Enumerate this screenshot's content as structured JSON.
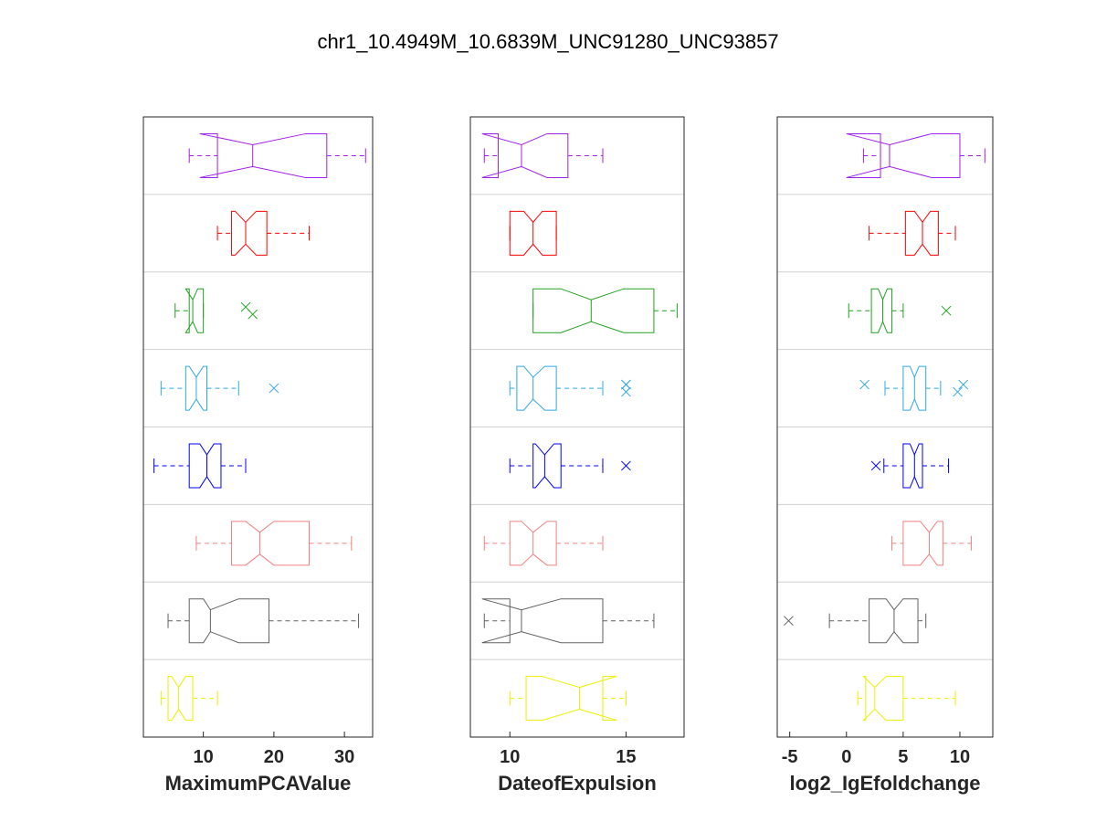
{
  "figure_title": "chr1_10.4949M_10.6839M_UNC91280_UNC93857",
  "chart_data": [
    {
      "type": "boxplot",
      "orientation": "horizontal",
      "notched": true,
      "xlabel": "MaximumPCAValue",
      "xlim": [
        1.5,
        34
      ],
      "xticks": [
        10,
        20,
        30
      ],
      "groups": [
        {
          "color": "#a020f0",
          "whisker_low": 8,
          "q1": 12,
          "median": 17,
          "q3": 27.5,
          "whisker_high": 33,
          "notch_low": 9.5,
          "notch_high": 24.5,
          "outliers": []
        },
        {
          "color": "#ff0000",
          "whisker_low": 12,
          "q1": 14,
          "median": 16,
          "q3": 19,
          "whisker_high": 25,
          "notch_low": 14.5,
          "notch_high": 17.5,
          "outliers": []
        },
        {
          "color": "#20a020",
          "whisker_low": 6,
          "q1": 8,
          "median": 8.5,
          "q3": 10,
          "whisker_high": 10,
          "notch_low": 7.5,
          "notch_high": 9.2,
          "outliers": [
            16,
            17
          ]
        },
        {
          "color": "#30a8e0",
          "whisker_low": 4,
          "q1": 7.5,
          "median": 9,
          "q3": 10.5,
          "whisker_high": 15,
          "notch_low": 8,
          "notch_high": 10,
          "outliers": [
            20
          ]
        },
        {
          "color": "#0000ff",
          "whisker_low": 3,
          "q1": 8,
          "median": 10.5,
          "q3": 12.5,
          "whisker_high": 16,
          "notch_low": 9.5,
          "notch_high": 11.5,
          "outliers": []
        },
        {
          "color": "#f08080",
          "whisker_low": 9,
          "q1": 14,
          "median": 18,
          "q3": 25,
          "whisker_high": 31,
          "notch_low": 16,
          "notch_high": 20,
          "outliers": []
        },
        {
          "color": "#606060",
          "whisker_low": 5,
          "q1": 8,
          "median": 11,
          "q3": 19.3,
          "whisker_high": 32,
          "notch_low": 10,
          "notch_high": 15,
          "outliers": []
        },
        {
          "color": "#eeee00",
          "whisker_low": 4,
          "q1": 5,
          "median": 6.5,
          "q3": 8.5,
          "whisker_high": 12,
          "notch_low": 5.5,
          "notch_high": 7.5,
          "outliers": []
        }
      ]
    },
    {
      "type": "boxplot",
      "orientation": "horizontal",
      "notched": true,
      "xlabel": "DateofExpulsion",
      "xlim": [
        8.3,
        17.5
      ],
      "xticks": [
        10,
        15
      ],
      "groups": [
        {
          "color": "#a020f0",
          "whisker_low": 8.9,
          "q1": 9.5,
          "median": 10.5,
          "q3": 12.5,
          "whisker_high": 14,
          "notch_low": 8.8,
          "notch_high": 11.6,
          "outliers": []
        },
        {
          "color": "#ff0000",
          "whisker_low": 10,
          "q1": 10,
          "median": 11,
          "q3": 12,
          "whisker_high": 12,
          "notch_low": 10.6,
          "notch_high": 11.4,
          "outliers": []
        },
        {
          "color": "#20a020",
          "whisker_low": 11,
          "q1": 11,
          "median": 13.5,
          "q3": 16.2,
          "whisker_high": 17.2,
          "notch_low": 12.2,
          "notch_high": 14.9,
          "outliers": []
        },
        {
          "color": "#30a8e0",
          "whisker_low": 10,
          "q1": 10.3,
          "median": 11,
          "q3": 12,
          "whisker_high": 14,
          "notch_low": 10.6,
          "notch_high": 11.5,
          "outliers": [
            15,
            15,
            15
          ]
        },
        {
          "color": "#0000ff",
          "whisker_low": 10,
          "q1": 11,
          "median": 11.5,
          "q3": 12.2,
          "whisker_high": 14,
          "notch_low": 11.1,
          "notch_high": 11.9,
          "outliers": [
            15
          ]
        },
        {
          "color": "#f08080",
          "whisker_low": 8.9,
          "q1": 10,
          "median": 11,
          "q3": 12,
          "whisker_high": 14,
          "notch_low": 10.5,
          "notch_high": 11.6,
          "outliers": []
        },
        {
          "color": "#606060",
          "whisker_low": 8.9,
          "q1": 10,
          "median": 10.5,
          "q3": 14,
          "whisker_high": 16.2,
          "notch_low": 8.8,
          "notch_high": 12.2,
          "outliers": []
        },
        {
          "color": "#eeee00",
          "whisker_low": 10,
          "q1": 10.7,
          "median": 13,
          "q3": 14,
          "whisker_high": 15,
          "notch_low": 11.4,
          "notch_high": 14.6,
          "outliers": []
        }
      ]
    },
    {
      "type": "boxplot",
      "orientation": "horizontal",
      "notched": true,
      "xlabel": "log2_IgEfoldchange",
      "xlim": [
        -6.1,
        12.9
      ],
      "xticks": [
        -5,
        0,
        5,
        10
      ],
      "groups": [
        {
          "color": "#a020f0",
          "whisker_low": 1.5,
          "q1": 3,
          "median": 3.8,
          "q3": 10,
          "whisker_high": 12.2,
          "notch_low": 0,
          "notch_high": 7.5,
          "outliers": []
        },
        {
          "color": "#ff0000",
          "whisker_low": 2,
          "q1": 5.2,
          "median": 6.7,
          "q3": 8.1,
          "whisker_high": 9.6,
          "notch_low": 6,
          "notch_high": 7.4,
          "outliers": []
        },
        {
          "color": "#20a020",
          "whisker_low": 0.2,
          "q1": 2.2,
          "median": 3.2,
          "q3": 4,
          "whisker_high": 5,
          "notch_low": 2.8,
          "notch_high": 3.6,
          "outliers": [
            8.8
          ]
        },
        {
          "color": "#30a8e0",
          "whisker_low": 3.4,
          "q1": 5,
          "median": 6,
          "q3": 7,
          "whisker_high": 8.3,
          "notch_low": 5.6,
          "notch_high": 6.4,
          "outliers": [
            1.6,
            9.8,
            10.3
          ]
        },
        {
          "color": "#0000ff",
          "whisker_low": 3.3,
          "q1": 5,
          "median": 6,
          "q3": 6.7,
          "whisker_high": 9,
          "notch_low": 5.6,
          "notch_high": 6.4,
          "outliers": [
            2.6
          ]
        },
        {
          "color": "#f08080",
          "whisker_low": 4,
          "q1": 5,
          "median": 7.3,
          "q3": 8.5,
          "whisker_high": 11,
          "notch_low": 6.5,
          "notch_high": 8,
          "outliers": []
        },
        {
          "color": "#606060",
          "whisker_low": -1.5,
          "q1": 2,
          "median": 4.2,
          "q3": 6.3,
          "whisker_high": 7,
          "notch_low": 3.5,
          "notch_high": 5,
          "outliers": [
            -5.1
          ]
        },
        {
          "color": "#eeee00",
          "whisker_low": 1,
          "q1": 1.7,
          "median": 2.5,
          "q3": 5,
          "whisker_high": 9.6,
          "notch_low": 1.5,
          "notch_high": 3.5,
          "outliers": []
        }
      ]
    }
  ]
}
